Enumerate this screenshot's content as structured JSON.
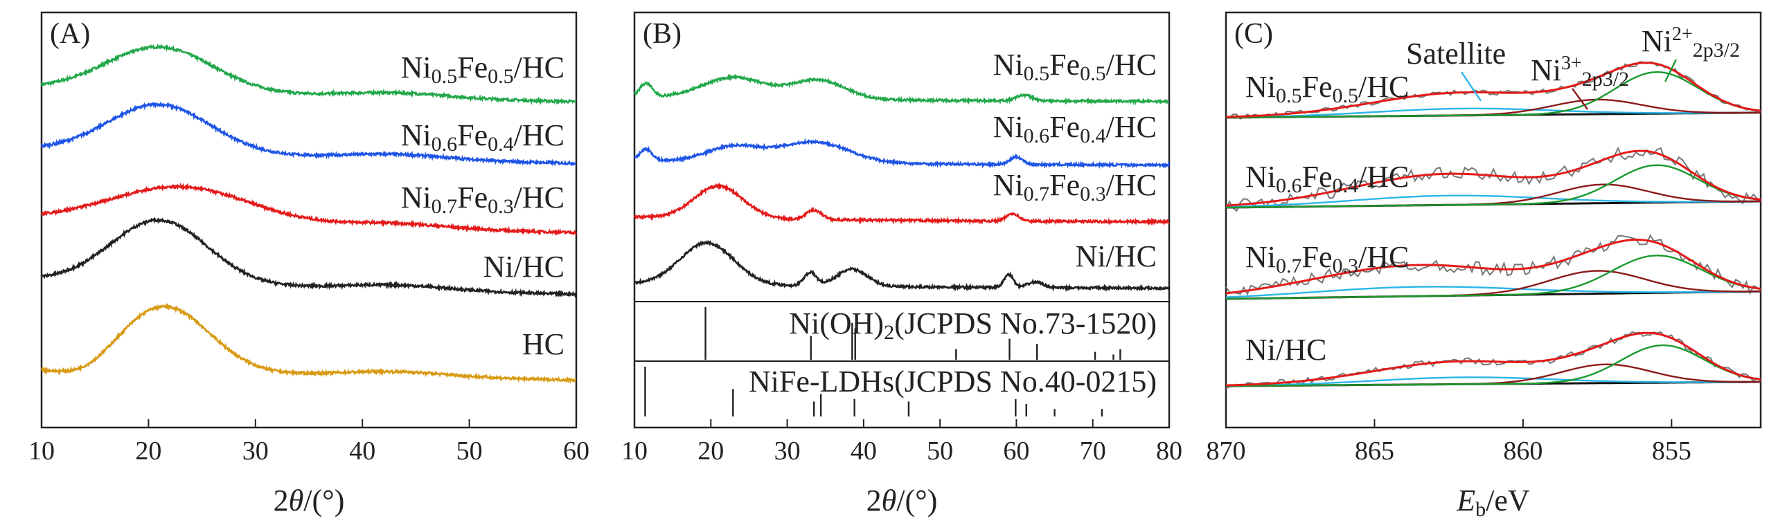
{
  "figure": {
    "panels": [
      "(A)",
      "(B)",
      "(C)"
    ]
  },
  "chart_data": [
    {
      "type": "line",
      "panel_label": "(A)",
      "xlabel": "2θ/(°)",
      "xlim": [
        10,
        60
      ],
      "xticks": [
        "10",
        "20",
        "30",
        "40",
        "50",
        "60"
      ],
      "ylabel": "",
      "series": [
        {
          "name": "Ni0.5Fe0.5/HC",
          "label_base": "Ni",
          "label_parts": [
            [
              "Ni",
              ""
            ],
            [
              "0.5",
              "sub"
            ],
            [
              "Fe",
              ""
            ],
            [
              "0.5",
              "sub"
            ],
            [
              "/HC",
              ""
            ]
          ],
          "color": "#22a84a",
          "offset": 4.3,
          "amp": 0.72,
          "center": 21,
          "width": 5.0,
          "tail": 0.18,
          "bg": 0.0
        },
        {
          "name": "Ni0.6Fe0.4/HC",
          "label_parts": [
            [
              "Ni",
              ""
            ],
            [
              "0.6",
              "sub"
            ],
            [
              "Fe",
              ""
            ],
            [
              "0.4",
              "sub"
            ],
            [
              "/HC",
              ""
            ]
          ],
          "color": "#1f55e6",
          "offset": 3.2,
          "amp": 0.78,
          "center": 21,
          "width": 4.8,
          "tail": 0.2,
          "bg": 0.0
        },
        {
          "name": "Ni0.7Fe0.3/HC",
          "label_parts": [
            [
              "Ni",
              ""
            ],
            [
              "0.7",
              "sub"
            ],
            [
              "Fe",
              ""
            ],
            [
              "0.3",
              "sub"
            ],
            [
              "/HC",
              ""
            ]
          ],
          "color": "#e41a1a",
          "offset": 2.1,
          "amp": 0.58,
          "center": 23,
          "width": 6.5,
          "tail": 0.2,
          "bg": 0.0
        },
        {
          "name": "Ni/HC",
          "label_parts": [
            [
              "Ni/HC",
              ""
            ]
          ],
          "color": "#222222",
          "offset": 1.0,
          "amp": 1.02,
          "center": 21,
          "width": 4.5,
          "tail": 0.22,
          "bg": 0.0
        },
        {
          "name": "HC",
          "label_parts": [
            [
              "HC",
              ""
            ]
          ],
          "color": "#d89a12",
          "offset": 0.0,
          "amp": 1.05,
          "center": 21.5,
          "width": 4.2,
          "tail": 0.12,
          "bg": 0.0
        }
      ]
    },
    {
      "type": "line",
      "panel_label": "(B)",
      "xlabel": "2θ/(°)",
      "xlim": [
        10,
        80
      ],
      "xticks": [
        "10",
        "20",
        "30",
        "40",
        "50",
        "60",
        "70",
        "80"
      ],
      "series": [
        {
          "name": "Ni0.5Fe0.5/HC",
          "label_parts": [
            [
              "Ni",
              ""
            ],
            [
              "0.5",
              "sub"
            ],
            [
              "Fe",
              ""
            ],
            [
              "0.5",
              "sub"
            ],
            [
              "/HC",
              ""
            ]
          ],
          "color": "#22a84a",
          "offset": 3.3,
          "peaks": [
            [
              11.5,
              0.35,
              0.8
            ],
            [
              23,
              0.55,
              4.0
            ],
            [
              34,
              0.5,
              3.5
            ],
            [
              61,
              0.15,
              1.0
            ]
          ]
        },
        {
          "name": "Ni0.6Fe0.4/HC",
          "label_parts": [
            [
              "Ni",
              ""
            ],
            [
              "0.6",
              "sub"
            ],
            [
              "Fe",
              ""
            ],
            [
              "0.4",
              "sub"
            ],
            [
              "/HC",
              ""
            ]
          ],
          "color": "#1f55e6",
          "offset": 2.3,
          "peaks": [
            [
              11.5,
              0.3,
              0.8
            ],
            [
              23,
              0.4,
              3.5
            ],
            [
              33.5,
              0.55,
              4.5
            ],
            [
              60,
              0.2,
              0.8
            ]
          ]
        },
        {
          "name": "Ni0.7Fe0.3/HC",
          "label_parts": [
            [
              "Ni",
              ""
            ],
            [
              "0.7",
              "sub"
            ],
            [
              "Fe",
              ""
            ],
            [
              "0.3",
              "sub"
            ],
            [
              "/HC",
              ""
            ]
          ],
          "color": "#e41a1a",
          "offset": 1.3,
          "peaks": [
            [
              21,
              0.85,
              3.2
            ],
            [
              33.5,
              0.25,
              1.0
            ],
            [
              59.5,
              0.2,
              0.8
            ]
          ]
        },
        {
          "name": "Ni/HC",
          "label_parts": [
            [
              "Ni/HC",
              ""
            ]
          ],
          "color": "#222222",
          "offset": 0.0,
          "peaks": [
            [
              19.5,
              1.1,
              3.5
            ],
            [
              33,
              0.35,
              0.8
            ],
            [
              38.5,
              0.45,
              2.0
            ],
            [
              59,
              0.35,
              0.6
            ],
            [
              62.5,
              0.15,
              1.0
            ]
          ]
        }
      ],
      "references": [
        {
          "name": "Ni(OH)2(JCPDS No.73-1520)",
          "label_parts": [
            [
              "Ni(OH)",
              ""
            ],
            [
              "2",
              "sub"
            ],
            [
              "(JCPDS No.73-1520)",
              ""
            ]
          ],
          "lines": [
            [
              19.3,
              1.0
            ],
            [
              33.1,
              0.45
            ],
            [
              38.5,
              0.7
            ],
            [
              38.9,
              0.6
            ],
            [
              52.1,
              0.2
            ],
            [
              59.1,
              0.4
            ],
            [
              62.7,
              0.3
            ],
            [
              70.3,
              0.15
            ],
            [
              72.7,
              0.1
            ],
            [
              73.6,
              0.2
            ]
          ]
        },
        {
          "name": "NiFe-LDHs(JCPDS No.40-0215)",
          "label_parts": [
            [
              "NiFe-LDHs(JCPDS No.40-0215)",
              ""
            ]
          ],
          "lines": [
            [
              11.4,
              1.0
            ],
            [
              22.9,
              0.55
            ],
            [
              33.5,
              0.3
            ],
            [
              34.4,
              0.45
            ],
            [
              38.8,
              0.35
            ],
            [
              45.9,
              0.3
            ],
            [
              59.9,
              0.35
            ],
            [
              61.3,
              0.25
            ],
            [
              65.0,
              0.15
            ],
            [
              71.2,
              0.15
            ]
          ]
        }
      ]
    },
    {
      "type": "line",
      "panel_label": "(C)",
      "xlabel": "Eb/eV",
      "xlabel_parts": [
        [
          "E",
          "i"
        ],
        [
          "b",
          "sub"
        ],
        [
          "/eV",
          ""
        ]
      ],
      "xlim": [
        870,
        852
      ],
      "xticks": [
        "870",
        "865",
        "860",
        "855"
      ],
      "annotations": [
        {
          "text": "Satellite",
          "parts": [
            [
              "Satellite",
              ""
            ]
          ],
          "color": "#2bb6e8"
        },
        {
          "text": "Ni3+ 2p3/2",
          "parts": [
            [
              "Ni",
              ""
            ],
            [
              "3+",
              "sup"
            ],
            [
              "2p3/2",
              "sub"
            ]
          ],
          "color": "#8b1a1a"
        },
        {
          "text": "Ni2+ 2p3/2",
          "parts": [
            [
              "Ni",
              ""
            ],
            [
              "2+",
              "sup"
            ],
            [
              "2p3/2",
              "sub"
            ]
          ],
          "color": "#1a9a2e"
        }
      ],
      "series": [
        {
          "name": "Ni0.5Fe0.5/HC",
          "label_parts": [
            [
              "Ni",
              ""
            ],
            [
              "0.5",
              "sub"
            ],
            [
              "Fe",
              ""
            ],
            [
              "0.5",
              "sub"
            ],
            [
              "/HC",
              ""
            ]
          ],
          "offset": 3,
          "ni2": [
            855.5,
            1.0,
            1.4
          ],
          "ni3": [
            857.5,
            0.35,
            1.5
          ],
          "sat": [
            862,
            0.55,
            3.0
          ],
          "bg": [
            0.0,
            0.12
          ],
          "noise": 0.03
        },
        {
          "name": "Ni0.6Fe0.4/HC",
          "label_parts": [
            [
              "Ni",
              ""
            ],
            [
              "0.6",
              "sub"
            ],
            [
              "Fe",
              ""
            ],
            [
              "0.4",
              "sub"
            ],
            [
              "/HC",
              ""
            ]
          ],
          "offset": 2,
          "ni2": [
            855.5,
            0.9,
            1.4
          ],
          "ni3": [
            857.3,
            0.45,
            1.5
          ],
          "sat": [
            862.5,
            0.75,
            3.2
          ],
          "bg": [
            0.0,
            0.15
          ],
          "noise": 0.08
        },
        {
          "name": "Ni0.7Fe0.3/HC",
          "label_parts": [
            [
              "Ni",
              ""
            ],
            [
              "0.7",
              "sub"
            ],
            [
              "Fe",
              ""
            ],
            [
              "0.3",
              "sub"
            ],
            [
              "/HC",
              ""
            ]
          ],
          "offset": 1,
          "ni2": [
            855.5,
            0.9,
            1.5
          ],
          "ni3": [
            857.5,
            0.55,
            1.6
          ],
          "sat": [
            863.5,
            0.75,
            3.5
          ],
          "bg": [
            0.0,
            0.18
          ],
          "noise": 0.08
        },
        {
          "name": "Ni/HC",
          "label_parts": [
            [
              "Ni/HC",
              ""
            ]
          ],
          "offset": 0,
          "ni2": [
            855.3,
            0.9,
            1.4
          ],
          "ni3": [
            857.2,
            0.45,
            1.5
          ],
          "sat": [
            862,
            0.55,
            3.0
          ],
          "bg": [
            0.0,
            0.1
          ],
          "noise": 0.04
        }
      ]
    }
  ]
}
